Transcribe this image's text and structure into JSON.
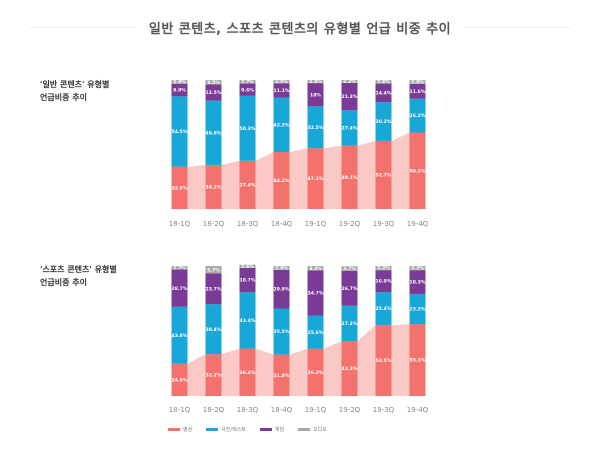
{
  "title": "일반 콘텐츠, 스포츠 콘텐츠의 유형별 언급 비중 추이",
  "charts": [
    {
      "label_line1": "'일반 콘텐츠' 유형별",
      "label_line2": "언급비중 추이"
    },
    {
      "label_line1": "'스포츠 콘텐츠' 유형별",
      "label_line2": "언급비중 추이"
    }
  ],
  "legend": [
    {
      "name": "영상",
      "color": "#f4726d"
    },
    {
      "name": "사진/텍스트",
      "color": "#19a7d7"
    },
    {
      "name": "게임",
      "color": "#7a3b96"
    },
    {
      "name": "오디오",
      "color": "#a9a9a9"
    }
  ],
  "chart_data": [
    {
      "type": "bar",
      "stacked": true,
      "title": "",
      "categories": [
        "18-1Q",
        "18-2Q",
        "18-3Q",
        "18-4Q",
        "19-1Q",
        "19-2Q",
        "19-3Q",
        "19-4Q"
      ],
      "series": [
        {
          "name": "영상",
          "values": [
            32.8,
            34.2,
            37.4,
            44.2,
            47.1,
            49.1,
            52.7,
            59.3
          ],
          "labels": [
            "32.8%",
            "34.2%",
            "37.4%",
            "44.2%",
            "47.1%",
            "49.1%",
            "52.7%",
            "59.3%"
          ],
          "color": "#f4726d"
        },
        {
          "name": "사진/텍스트",
          "values": [
            54.5,
            49.8,
            50.3,
            42.2,
            32.5,
            27.4,
            30.2,
            26.2
          ],
          "labels": [
            "54.5%",
            "49.8%",
            "50.3%",
            "42.2%",
            "32.5%",
            "27.4%",
            "30.2%",
            "26.2%"
          ],
          "color": "#19a7d7"
        },
        {
          "name": "게임",
          "values": [
            9.9,
            12.5,
            9.6,
            11.1,
            18.0,
            21.3,
            14.4,
            11.6
          ],
          "labels": [
            "9.9%",
            "12.5%",
            "9.6%",
            "11.1%",
            "18%",
            "21.3%",
            "14.4%",
            "11.6%"
          ],
          "color": "#7a3b96"
        },
        {
          "name": "오디오",
          "values": [
            2.8,
            3.5,
            2.7,
            2.5,
            2.4,
            2.2,
            2.6,
            2.9
          ],
          "labels": [
            "2.8%",
            "3.5%",
            "2.7%",
            "2.5%",
            "2.4%",
            "2.2%",
            "2.6%",
            "2.9%"
          ],
          "color": "#a9a9a9"
        }
      ],
      "ylim": [
        0,
        100
      ],
      "legend": "bottom-left"
    },
    {
      "type": "bar",
      "stacked": true,
      "title": "",
      "categories": [
        "18-1Q",
        "18-2Q",
        "18-3Q",
        "18-4Q",
        "19-1Q",
        "19-2Q",
        "19-3Q",
        "19-4Q"
      ],
      "series": [
        {
          "name": "영상",
          "values": [
            24.8,
            32.2,
            36.4,
            31.8,
            36.3,
            42.3,
            54.5,
            55.3
          ],
          "labels": [
            "24.8%",
            "32.2%",
            "36.4%",
            "31.8%",
            "36.3%",
            "42.3%",
            "54.5%",
            "55.3%"
          ],
          "color": "#f4726d"
        },
        {
          "name": "사진/텍스트",
          "values": [
            43.8,
            38.4,
            43.4,
            35.5,
            25.6,
            27.2,
            25.4,
            23.2
          ],
          "labels": [
            "43.8%",
            "38.4%",
            "43.4%",
            "35.5%",
            "25.6%",
            "27.2%",
            "25.4%",
            "23.2%"
          ],
          "color": "#19a7d7"
        },
        {
          "name": "게임",
          "values": [
            28.7,
            23.7,
            18.7,
            29.8,
            34.7,
            26.7,
            16.9,
            18.3
          ],
          "labels": [
            "28.7%",
            "23.7%",
            "18.7%",
            "29.8%",
            "34.7%",
            "26.7%",
            "16.9%",
            "18.3%"
          ],
          "color": "#7a3b96"
        },
        {
          "name": "오디오",
          "values": [
            2.7,
            5.7,
            2.6,
            2.9,
            3.4,
            3.7,
            3.2,
            3.2
          ],
          "labels": [
            "2.7%",
            "5.7%",
            "2.6%",
            "2.9%",
            "3.4%",
            "3.7%",
            "3.2%",
            "3.2%"
          ],
          "color": "#a9a9a9"
        }
      ],
      "ylim": [
        0,
        100
      ],
      "legend": "bottom-left"
    }
  ]
}
